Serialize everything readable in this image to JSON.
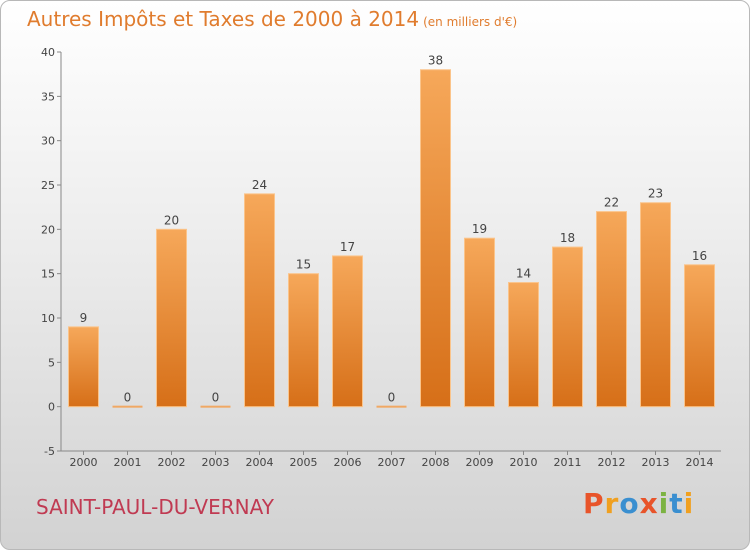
{
  "title": "Autres Impôts et Taxes de 2000 à 2014",
  "subtitle": "(en milliers d'€)",
  "commune": "SAINT-PAUL-DU-VERNAY",
  "logo": "Proxiti",
  "colors": {
    "bar": "#f09a45",
    "title": "#e07c2e",
    "commune": "#c03a52"
  },
  "chart_data": {
    "type": "bar",
    "categories": [
      "2000",
      "2001",
      "2002",
      "2003",
      "2004",
      "2005",
      "2006",
      "2007",
      "2008",
      "2009",
      "2010",
      "2011",
      "2012",
      "2013",
      "2014"
    ],
    "values": [
      9,
      0,
      20,
      0,
      24,
      15,
      17,
      0,
      38,
      19,
      14,
      18,
      22,
      23,
      16
    ],
    "ylim": [
      -5,
      40
    ],
    "yticks": [
      -5,
      0,
      5,
      10,
      15,
      20,
      25,
      30,
      35,
      40
    ],
    "grid": false
  }
}
